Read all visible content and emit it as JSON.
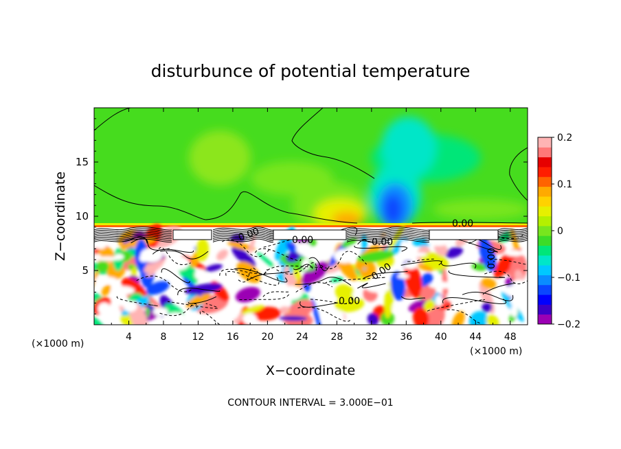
{
  "chart_data": {
    "type": "heatmap",
    "title": "disturbunce of potential temperature",
    "xlabel": "X−coordinate",
    "ylabel": "Z−coordinate",
    "x_unit_left": "(×1000 m)",
    "x_unit_right": "(×1000 m)",
    "x_ticks": [
      "4",
      "8",
      "12",
      "16",
      "20",
      "24",
      "28",
      "32",
      "36",
      "40",
      "44",
      "48"
    ],
    "y_ticks": [
      "5",
      "10",
      "15"
    ],
    "xlim": [
      0,
      50
    ],
    "ylim": [
      0,
      20
    ],
    "colorbar": {
      "ticks": [
        "0.2",
        "0.1",
        "0",
        "−0.1",
        "−0.2"
      ],
      "range": [
        -0.2,
        0.2
      ],
      "colors": [
        "#9b00b4",
        "#3c00c8",
        "#0000ff",
        "#0a46ff",
        "#0a8cff",
        "#00c8ff",
        "#00e6c8",
        "#00e678",
        "#3cdc28",
        "#78e61e",
        "#b4f000",
        "#e6f000",
        "#ffd200",
        "#ffaa00",
        "#ff6400",
        "#ff1e00",
        "#e60000",
        "#ff7878",
        "#ffb4b4"
      ]
    },
    "contour_labels": [
      "0.00",
      "0.00",
      "0.00",
      "0.00",
      "0.00",
      "0.00",
      "0.00"
    ],
    "footer": "CONTOUR INTERVAL = 3.000E−01"
  }
}
